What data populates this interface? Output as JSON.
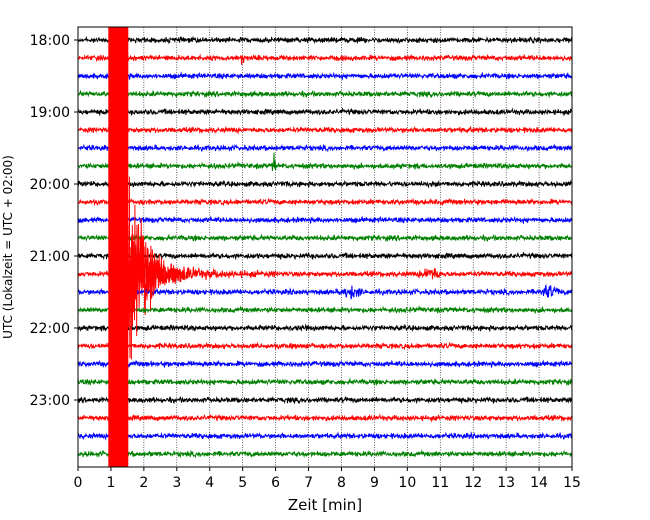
{
  "chart_data": {
    "type": "line",
    "title": "",
    "xlabel": "Zeit  [min]",
    "ylabel": "UTC (Lokalzeit = UTC + 02:00)",
    "xlim": [
      0,
      15
    ],
    "x_ticks": [
      "0",
      "1",
      "2",
      "3",
      "4",
      "5",
      "6",
      "7",
      "8",
      "9",
      "10",
      "11",
      "12",
      "13",
      "14",
      "15"
    ],
    "y_tick_labels": [
      "18:00",
      "19:00",
      "20:00",
      "21:00",
      "22:00",
      "23:00"
    ],
    "grid": "vertical dotted lines at each minute",
    "colors": {
      "cycle": [
        "#000000",
        "#ff0000",
        "#0000ff",
        "#008000"
      ]
    },
    "traces_per_hour": 4,
    "minutes_per_trace": 15,
    "traces": [
      {
        "start": "18:00",
        "color": "#000000"
      },
      {
        "start": "18:15",
        "color": "#ff0000"
      },
      {
        "start": "18:30",
        "color": "#0000ff"
      },
      {
        "start": "18:45",
        "color": "#008000"
      },
      {
        "start": "19:00",
        "color": "#000000"
      },
      {
        "start": "19:15",
        "color": "#ff0000"
      },
      {
        "start": "19:30",
        "color": "#0000ff"
      },
      {
        "start": "19:45",
        "color": "#008000"
      },
      {
        "start": "20:00",
        "color": "#000000"
      },
      {
        "start": "20:15",
        "color": "#ff0000"
      },
      {
        "start": "20:30",
        "color": "#0000ff"
      },
      {
        "start": "20:45",
        "color": "#008000"
      },
      {
        "start": "21:00",
        "color": "#000000"
      },
      {
        "start": "21:15",
        "color": "#ff0000"
      },
      {
        "start": "21:30",
        "color": "#0000ff"
      },
      {
        "start": "21:45",
        "color": "#008000"
      },
      {
        "start": "22:00",
        "color": "#000000"
      },
      {
        "start": "22:15",
        "color": "#ff0000"
      },
      {
        "start": "22:30",
        "color": "#0000ff"
      },
      {
        "start": "22:45",
        "color": "#008000"
      },
      {
        "start": "23:00",
        "color": "#000000"
      },
      {
        "start": "23:15",
        "color": "#ff0000"
      },
      {
        "start": "23:30",
        "color": "#0000ff"
      },
      {
        "start": "23:45",
        "color": "#008000"
      }
    ],
    "events": [
      {
        "name": "large earthquake",
        "trace_start": "21:15",
        "onset_min": 0.95,
        "saturated_until_min": 1.5,
        "coda_until_min": 6.0,
        "color": "#ff0000"
      },
      {
        "name": "spike",
        "trace_start": "18:15",
        "at_min": 5.0
      },
      {
        "name": "spike",
        "trace_start": "19:45",
        "at_min": 5.95
      },
      {
        "name": "burst",
        "trace_start": "21:15",
        "at_min": 10.7
      },
      {
        "name": "burst",
        "trace_start": "21:30",
        "at_min": 8.3
      },
      {
        "name": "burst",
        "trace_start": "21:30",
        "at_min": 14.3
      }
    ]
  }
}
